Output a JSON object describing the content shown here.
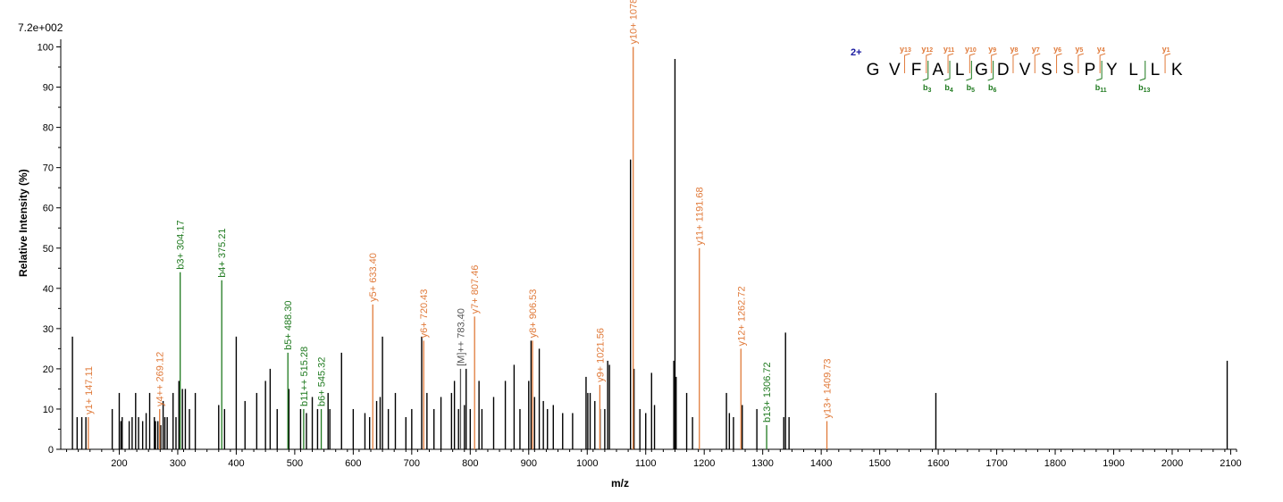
{
  "colors": {
    "b": "#1f7a1f",
    "y": "#e07a3a",
    "precursor": "#555555",
    "other": "#000000",
    "charge": "#1a1aa0"
  },
  "chart_data": {
    "type": "bar",
    "max_intensity_label": "7.2e+002",
    "xlabel": "m/z",
    "ylabel": "Relative   Intensity (%)",
    "xlim": [
      100,
      2110
    ],
    "ylim": [
      0,
      101
    ],
    "x_ticks": [
      200,
      300,
      400,
      500,
      600,
      700,
      800,
      900,
      1000,
      1100,
      1200,
      1300,
      1400,
      1500,
      1600,
      1700,
      1800,
      1900,
      2000,
      2100
    ],
    "y_ticks": [
      0,
      10,
      20,
      30,
      40,
      50,
      60,
      70,
      80,
      90,
      100
    ],
    "annotated_peaks": [
      {
        "mz": 147.11,
        "intensity": 8,
        "ion": "y",
        "label": "y1+ 147.11"
      },
      {
        "mz": 269.12,
        "intensity": 10,
        "ion": "y",
        "label": "y4++ 269.12"
      },
      {
        "mz": 304.17,
        "intensity": 44,
        "ion": "b",
        "label": "b3+ 304.17"
      },
      {
        "mz": 375.21,
        "intensity": 42,
        "ion": "b",
        "label": "b4+ 375.21"
      },
      {
        "mz": 488.3,
        "intensity": 24,
        "ion": "b",
        "label": "b5+ 488.30"
      },
      {
        "mz": 515.28,
        "intensity": 10,
        "ion": "b",
        "label": "b11++ 515.28"
      },
      {
        "mz": 545.32,
        "intensity": 10,
        "ion": "b",
        "label": "b6+ 545.32"
      },
      {
        "mz": 633.4,
        "intensity": 36,
        "ion": "y",
        "label": "y5+ 633.40"
      },
      {
        "mz": 720.43,
        "intensity": 27,
        "ion": "y",
        "label": "y6+ 720.43"
      },
      {
        "mz": 783.4,
        "intensity": 20,
        "ion": "precursor",
        "label": "[M]++ 783.40"
      },
      {
        "mz": 807.46,
        "intensity": 33,
        "ion": "y",
        "label": "y7+ 807.46"
      },
      {
        "mz": 906.53,
        "intensity": 27,
        "ion": "y",
        "label": "y8+ 906.53"
      },
      {
        "mz": 1021.56,
        "intensity": 16,
        "ion": "y",
        "label": "y9+ 1021.56"
      },
      {
        "mz": 1078.59,
        "intensity": 100,
        "ion": "y",
        "label": "y10+ 1078.59"
      },
      {
        "mz": 1191.68,
        "intensity": 50,
        "ion": "y",
        "label": "y11+ 1191.68"
      },
      {
        "mz": 1262.72,
        "intensity": 25,
        "ion": "y",
        "label": "y12+ 1262.72"
      },
      {
        "mz": 1306.72,
        "intensity": 6,
        "ion": "b",
        "label": "b13+ 1306.72"
      },
      {
        "mz": 1409.73,
        "intensity": 7,
        "ion": "y",
        "label": "y13+ 1409.73"
      }
    ],
    "other_peaks": [
      [
        120,
        28
      ],
      [
        128,
        8
      ],
      [
        136,
        8
      ],
      [
        143,
        8
      ],
      [
        188,
        10
      ],
      [
        200,
        14
      ],
      [
        203,
        7
      ],
      [
        205,
        8
      ],
      [
        217,
        7
      ],
      [
        222,
        8
      ],
      [
        228,
        14
      ],
      [
        233,
        8
      ],
      [
        240,
        7
      ],
      [
        246,
        9
      ],
      [
        252,
        14
      ],
      [
        260,
        8
      ],
      [
        262,
        7
      ],
      [
        266,
        7
      ],
      [
        271,
        6
      ],
      [
        275,
        12
      ],
      [
        278,
        8
      ],
      [
        282,
        8
      ],
      [
        292,
        14
      ],
      [
        297,
        8
      ],
      [
        302,
        17
      ],
      [
        308,
        15
      ],
      [
        313,
        15
      ],
      [
        320,
        10
      ],
      [
        330,
        14
      ],
      [
        370,
        11
      ],
      [
        380,
        10
      ],
      [
        400,
        28
      ],
      [
        415,
        12
      ],
      [
        435,
        14
      ],
      [
        450,
        17
      ],
      [
        458,
        20
      ],
      [
        470,
        10
      ],
      [
        490,
        15
      ],
      [
        510,
        10
      ],
      [
        520,
        9
      ],
      [
        530,
        13
      ],
      [
        539,
        10
      ],
      [
        557,
        14
      ],
      [
        560,
        10
      ],
      [
        580,
        24
      ],
      [
        600,
        10
      ],
      [
        620,
        9
      ],
      [
        628,
        8
      ],
      [
        640,
        12
      ],
      [
        646,
        13
      ],
      [
        650,
        28
      ],
      [
        660,
        10
      ],
      [
        672,
        14
      ],
      [
        690,
        8
      ],
      [
        700,
        10
      ],
      [
        717,
        28
      ],
      [
        726,
        14
      ],
      [
        738,
        10
      ],
      [
        750,
        13
      ],
      [
        768,
        14
      ],
      [
        773,
        17
      ],
      [
        780,
        10
      ],
      [
        790,
        11
      ],
      [
        793,
        20
      ],
      [
        800,
        10
      ],
      [
        815,
        17
      ],
      [
        820,
        10
      ],
      [
        840,
        13
      ],
      [
        860,
        17
      ],
      [
        875,
        21
      ],
      [
        885,
        10
      ],
      [
        900,
        17
      ],
      [
        904,
        27
      ],
      [
        910,
        13
      ],
      [
        918,
        25
      ],
      [
        925,
        12
      ],
      [
        932,
        10
      ],
      [
        942,
        11
      ],
      [
        958,
        9
      ],
      [
        975,
        9
      ],
      [
        998,
        18
      ],
      [
        1001,
        14
      ],
      [
        1005,
        14
      ],
      [
        1013,
        12
      ],
      [
        1022,
        10
      ],
      [
        1030,
        10
      ],
      [
        1035,
        22
      ],
      [
        1038,
        21
      ],
      [
        1074,
        72
      ],
      [
        1080,
        20
      ],
      [
        1090,
        10
      ],
      [
        1100,
        9
      ],
      [
        1110,
        19
      ],
      [
        1115,
        11
      ],
      [
        1148,
        22
      ],
      [
        1150,
        97
      ],
      [
        1152,
        18
      ],
      [
        1170,
        14
      ],
      [
        1180,
        8
      ],
      [
        1238,
        14
      ],
      [
        1243,
        9
      ],
      [
        1250,
        8
      ],
      [
        1265,
        11
      ],
      [
        1290,
        10
      ],
      [
        1336,
        8
      ],
      [
        1339,
        29
      ],
      [
        1345,
        8
      ],
      [
        1596,
        14
      ],
      [
        2094,
        22
      ]
    ],
    "sequence": {
      "charge": "2+",
      "residues": [
        "G",
        "V",
        "F",
        "A",
        "L",
        "G",
        "D",
        "V",
        "S",
        "S",
        "P",
        "Y",
        "L",
        "L",
        "K"
      ],
      "y_ions": [
        {
          "after": 2,
          "base": "y",
          "sub": "13"
        },
        {
          "after": 3,
          "base": "y",
          "sub": "12"
        },
        {
          "after": 4,
          "base": "y",
          "sub": "11"
        },
        {
          "after": 5,
          "base": "y",
          "sub": "10"
        },
        {
          "after": 6,
          "base": "y",
          "sub": "9"
        },
        {
          "after": 7,
          "base": "y",
          "sub": "8"
        },
        {
          "after": 8,
          "base": "y",
          "sub": "7"
        },
        {
          "after": 9,
          "base": "y",
          "sub": "6"
        },
        {
          "after": 10,
          "base": "y",
          "sub": "5"
        },
        {
          "after": 11,
          "base": "y",
          "sub": "4"
        },
        {
          "after": 14,
          "base": "y",
          "sub": "1"
        }
      ],
      "b_ions": [
        {
          "after": 3,
          "base": "b",
          "sub": "3"
        },
        {
          "after": 4,
          "base": "b",
          "sub": "4"
        },
        {
          "after": 5,
          "base": "b",
          "sub": "5"
        },
        {
          "after": 6,
          "base": "b",
          "sub": "6"
        },
        {
          "after": 11,
          "base": "b",
          "sub": "11"
        },
        {
          "after": 13,
          "base": "b",
          "sub": "13"
        }
      ]
    }
  }
}
